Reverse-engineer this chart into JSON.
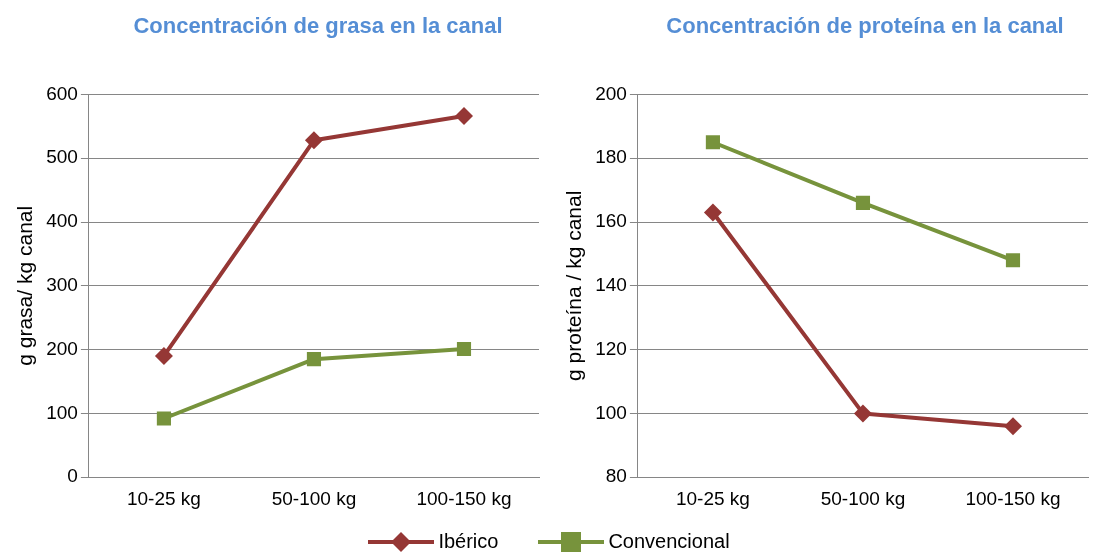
{
  "chart_data": [
    {
      "type": "line",
      "title": "Concentración de grasa en la canal",
      "ylabel": "g grasa/ kg canal",
      "categories": [
        "10-25 kg",
        "50-100 kg",
        "100-150 kg"
      ],
      "ylim": [
        0,
        600
      ],
      "yticks": [
        0,
        100,
        200,
        300,
        400,
        500,
        600
      ],
      "grid": "y",
      "legend": "bottom",
      "series": [
        {
          "name": "Ibérico",
          "color": "#953735",
          "marker": "diamond",
          "values": [
            190,
            528,
            566
          ]
        },
        {
          "name": "Convencional",
          "color": "#77933c",
          "marker": "square",
          "values": [
            92,
            185,
            201
          ]
        }
      ]
    },
    {
      "type": "line",
      "title": "Concentración de proteína en la canal",
      "ylabel": "g proteína / kg canal",
      "categories": [
        "10-25 kg",
        "50-100 kg",
        "100-150 kg"
      ],
      "ylim": [
        80,
        200
      ],
      "yticks": [
        80,
        100,
        120,
        140,
        160,
        180,
        200
      ],
      "grid": "y",
      "legend": "bottom",
      "series": [
        {
          "name": "Ibérico",
          "color": "#953735",
          "marker": "diamond",
          "values": [
            163,
            100,
            96
          ]
        },
        {
          "name": "Convencional",
          "color": "#77933c",
          "marker": "square",
          "values": [
            185,
            166,
            148
          ]
        }
      ]
    }
  ]
}
